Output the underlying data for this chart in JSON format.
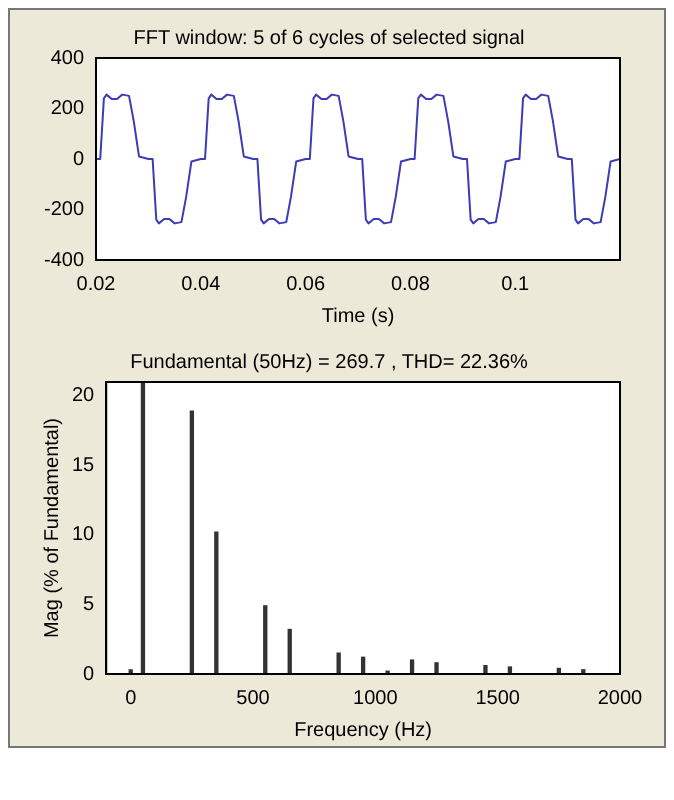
{
  "chart_data": [
    {
      "type": "line",
      "title": "FFT window: 5 of 6 cycles of selected signal",
      "xlabel": "Time (s)",
      "color": "#3c3cb4",
      "x": [
        0.02,
        0.0208,
        0.0215,
        0.022,
        0.023,
        0.024,
        0.025,
        0.0263,
        0.0272,
        0.0282,
        0.03,
        0.0308,
        0.0315,
        0.032,
        0.033,
        0.034,
        0.035,
        0.0363,
        0.0372,
        0.0382,
        0.04,
        0.0408,
        0.0415,
        0.042,
        0.043,
        0.044,
        0.045,
        0.0463,
        0.0472,
        0.0482,
        0.05,
        0.0508,
        0.0515,
        0.052,
        0.053,
        0.054,
        0.055,
        0.0563,
        0.0572,
        0.0582,
        0.06,
        0.0608,
        0.0615,
        0.062,
        0.063,
        0.064,
        0.065,
        0.0663,
        0.0672,
        0.0682,
        0.07,
        0.0708,
        0.0715,
        0.072,
        0.073,
        0.074,
        0.075,
        0.0763,
        0.0772,
        0.0782,
        0.08,
        0.0808,
        0.0815,
        0.082,
        0.083,
        0.084,
        0.085,
        0.0863,
        0.0872,
        0.0882,
        0.09,
        0.0908,
        0.0915,
        0.092,
        0.093,
        0.094,
        0.095,
        0.0963,
        0.0972,
        0.0982,
        0.1,
        0.1008,
        0.1015,
        0.102,
        0.103,
        0.104,
        0.105,
        0.1063,
        0.1072,
        0.1082,
        0.11,
        0.1108,
        0.1115,
        0.112,
        0.113,
        0.114,
        0.115,
        0.1163,
        0.1172,
        0.1182,
        0.12
      ],
      "values": [
        0,
        0,
        240,
        255,
        238,
        238,
        255,
        250,
        150,
        10,
        0,
        0,
        -240,
        -255,
        -238,
        -238,
        -255,
        -250,
        -150,
        -10,
        0,
        0,
        240,
        255,
        238,
        238,
        255,
        250,
        150,
        10,
        0,
        0,
        -240,
        -255,
        -238,
        -238,
        -255,
        -250,
        -150,
        -10,
        0,
        0,
        240,
        255,
        238,
        238,
        255,
        250,
        150,
        10,
        0,
        0,
        -240,
        -255,
        -238,
        -238,
        -255,
        -250,
        -150,
        -10,
        0,
        0,
        240,
        255,
        238,
        238,
        255,
        250,
        150,
        10,
        0,
        0,
        -240,
        -255,
        -238,
        -238,
        -255,
        -250,
        -150,
        -10,
        0,
        0,
        240,
        255,
        238,
        238,
        255,
        250,
        150,
        10,
        0,
        0,
        -240,
        -255,
        -238,
        -238,
        -255,
        -250,
        -150,
        -10,
        0
      ],
      "xlim": [
        0.02,
        0.12
      ],
      "xticks": [
        0.02,
        0.04,
        0.06,
        0.08,
        0.1
      ],
      "ylim": [
        -400,
        400
      ],
      "yticks": [
        -400,
        -200,
        0,
        200,
        400
      ]
    },
    {
      "type": "bar",
      "title": "Fundamental (50Hz) = 269.7 , THD= 22.36%",
      "xlabel": "Frequency (Hz)",
      "ylabel": "Mag (% of Fundamental)",
      "color": "#333333",
      "x": [
        0,
        50,
        250,
        350,
        550,
        650,
        850,
        950,
        1050,
        1150,
        1250,
        1450,
        1550,
        1750,
        1850
      ],
      "values": [
        0.3,
        21,
        18.9,
        10.2,
        4.9,
        3.2,
        1.5,
        1.2,
        0.2,
        1.0,
        0.8,
        0.6,
        0.5,
        0.4,
        0.3
      ],
      "xlim": [
        -100,
        2000
      ],
      "xticks": [
        0,
        500,
        1000,
        1500,
        2000
      ],
      "ylim": [
        0,
        21
      ],
      "yticks": [
        0,
        5,
        10,
        15,
        20
      ]
    }
  ]
}
